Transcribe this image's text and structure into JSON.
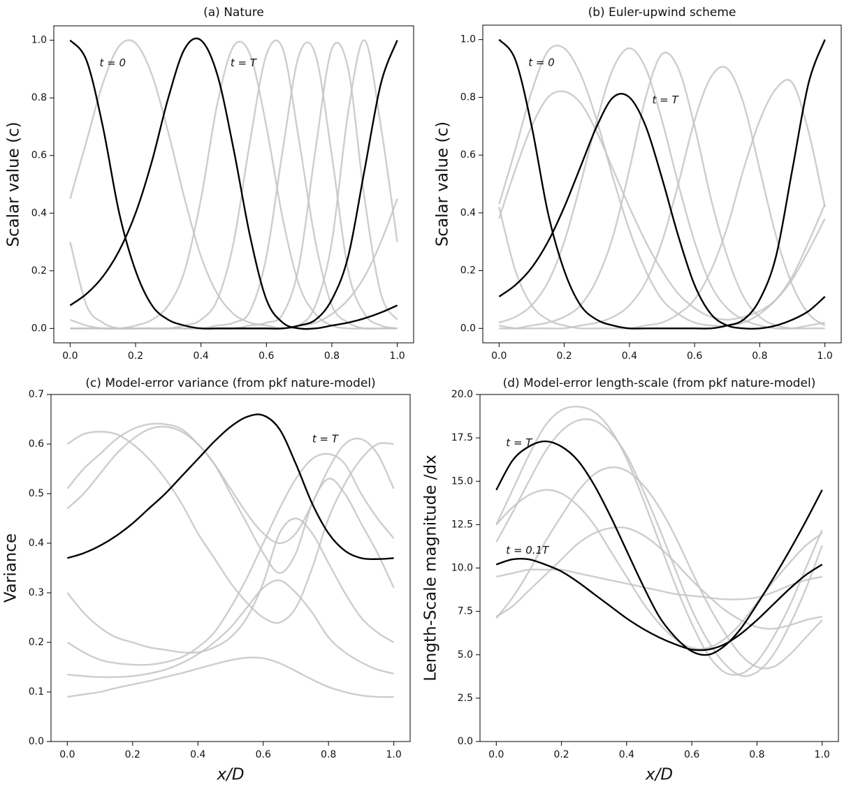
{
  "chart_data": [
    {
      "type": "line",
      "title": "(a) Nature",
      "ylabel": "Scalar value (c)",
      "x": [
        0,
        0.05,
        0.1,
        0.15,
        0.2,
        0.25,
        0.3,
        0.35,
        0.4,
        0.45,
        0.5,
        0.55,
        0.6,
        0.65,
        0.7,
        0.75,
        0.8,
        0.85,
        0.9,
        0.95,
        1
      ],
      "xlim": [
        -0.05,
        1.05
      ],
      "xticks": [
        {
          "value": 0,
          "label": "0.0"
        },
        0.2,
        0.4,
        0.6,
        0.8,
        {
          "value": 1,
          "label": "1.0"
        }
      ],
      "ylim": [
        -0.05,
        1.05
      ],
      "yticks": [
        {
          "value": 0,
          "label": "0.0"
        },
        0.2,
        0.4,
        0.6,
        0.8,
        {
          "value": 1,
          "label": "1.0"
        }
      ],
      "annotations": [
        "t = 0",
        "t = T"
      ],
      "series": [
        {
          "color": "#c4c4c4",
          "values": [
            0.45,
            0.65,
            0.85,
            0.98,
            0.99,
            0.88,
            0.68,
            0.45,
            0.25,
            0.12,
            0.05,
            0.02,
            0.01,
            0,
            0.01,
            0.02,
            0.05,
            0.1,
            0.18,
            0.3,
            0.45
          ]
        },
        {
          "color": "#c4c4c4",
          "values": [
            0,
            0,
            0,
            0,
            0.01,
            0.03,
            0.08,
            0.2,
            0.45,
            0.78,
            0.98,
            0.95,
            0.7,
            0.38,
            0.15,
            0.05,
            0.01,
            0,
            0,
            0,
            0
          ]
        },
        {
          "color": "#c4c4c4",
          "values": [
            0,
            0,
            0,
            0,
            0,
            0,
            0,
            0.01,
            0.03,
            0.1,
            0.3,
            0.65,
            0.95,
            0.97,
            0.65,
            0.3,
            0.08,
            0.02,
            0,
            0,
            0
          ]
        },
        {
          "color": "#c4c4c4",
          "values": [
            0,
            0,
            0,
            0,
            0,
            0,
            0,
            0,
            0,
            0.01,
            0.02,
            0.06,
            0.25,
            0.62,
            0.95,
            0.95,
            0.6,
            0.2,
            0.05,
            0.01,
            0
          ]
        },
        {
          "color": "#c4c4c4",
          "values": [
            0.03,
            0.01,
            0,
            0,
            0,
            0,
            0,
            0,
            0,
            0,
            0,
            0.01,
            0.02,
            0.05,
            0.22,
            0.62,
            0.97,
            0.9,
            0.45,
            0.12,
            0.03
          ]
        },
        {
          "color": "#c4c4c4",
          "values": [
            0.3,
            0.08,
            0.02,
            0,
            0,
            0,
            0,
            0,
            0,
            0,
            0,
            0,
            0,
            0,
            0.01,
            0.08,
            0.3,
            0.75,
            1.0,
            0.7,
            0.3
          ]
        },
        {
          "color": "#000000",
          "values": [
            1.0,
            0.93,
            0.7,
            0.4,
            0.2,
            0.08,
            0.03,
            0.01,
            0,
            0,
            0,
            0,
            0,
            0,
            0.01,
            0.03,
            0.1,
            0.25,
            0.55,
            0.85,
            1.0
          ]
        },
        {
          "color": "#000000",
          "values": [
            0.08,
            0.12,
            0.18,
            0.27,
            0.4,
            0.58,
            0.8,
            0.97,
            1.0,
            0.88,
            0.62,
            0.32,
            0.1,
            0.02,
            0,
            0,
            0.01,
            0.02,
            0.035,
            0.055,
            0.08
          ]
        }
      ]
    },
    {
      "type": "line",
      "title": "(b) Euler-upwind scheme",
      "ylabel": "Scalar value (c)",
      "x": [
        0,
        0.05,
        0.1,
        0.15,
        0.2,
        0.25,
        0.3,
        0.35,
        0.4,
        0.45,
        0.5,
        0.55,
        0.6,
        0.65,
        0.7,
        0.75,
        0.8,
        0.85,
        0.9,
        0.95,
        1
      ],
      "xlim": [
        -0.05,
        1.05
      ],
      "xticks": [
        {
          "value": 0,
          "label": "0.0"
        },
        0.2,
        0.4,
        0.6,
        0.8,
        {
          "value": 1,
          "label": "1.0"
        }
      ],
      "ylim": [
        -0.05,
        1.05
      ],
      "yticks": [
        {
          "value": 0,
          "label": "0.0"
        },
        0.2,
        0.4,
        0.6,
        0.8,
        {
          "value": 1,
          "label": "1.0"
        }
      ],
      "annotations": [
        "t = 0",
        "t = T"
      ],
      "series": [
        {
          "color": "#c4c4c4",
          "values": [
            0.43,
            0.62,
            0.82,
            0.96,
            0.97,
            0.88,
            0.72,
            0.52,
            0.34,
            0.2,
            0.1,
            0.05,
            0.02,
            0.01,
            0.01,
            0.02,
            0.05,
            0.1,
            0.18,
            0.3,
            0.43
          ]
        },
        {
          "color": "#c4c4c4",
          "values": [
            0.38,
            0.55,
            0.7,
            0.8,
            0.82,
            0.78,
            0.68,
            0.55,
            0.42,
            0.3,
            0.2,
            0.12,
            0.07,
            0.04,
            0.03,
            0.04,
            0.06,
            0.1,
            0.17,
            0.27,
            0.38
          ]
        },
        {
          "color": "#c4c4c4",
          "values": [
            0.02,
            0.04,
            0.08,
            0.16,
            0.3,
            0.5,
            0.72,
            0.9,
            0.97,
            0.9,
            0.72,
            0.5,
            0.3,
            0.15,
            0.07,
            0.03,
            0.01,
            0,
            0,
            0.01,
            0.02
          ]
        },
        {
          "color": "#c4c4c4",
          "values": [
            0,
            0,
            0.01,
            0.02,
            0.04,
            0.08,
            0.17,
            0.32,
            0.55,
            0.8,
            0.95,
            0.9,
            0.7,
            0.45,
            0.25,
            0.11,
            0.04,
            0.01,
            0,
            0,
            0
          ]
        },
        {
          "color": "#c4c4c4",
          "values": [
            0.01,
            0,
            0,
            0,
            0,
            0.01,
            0.02,
            0.04,
            0.08,
            0.16,
            0.3,
            0.5,
            0.72,
            0.87,
            0.9,
            0.78,
            0.55,
            0.32,
            0.15,
            0.05,
            0.01
          ]
        },
        {
          "color": "#c4c4c4",
          "values": [
            0.42,
            0.2,
            0.08,
            0.03,
            0.01,
            0,
            0,
            0,
            0,
            0.01,
            0.02,
            0.05,
            0.1,
            0.2,
            0.35,
            0.55,
            0.72,
            0.83,
            0.85,
            0.68,
            0.42
          ]
        },
        {
          "color": "#000000",
          "values": [
            1.0,
            0.93,
            0.7,
            0.4,
            0.2,
            0.08,
            0.03,
            0.01,
            0,
            0,
            0,
            0,
            0,
            0,
            0.01,
            0.03,
            0.1,
            0.25,
            0.55,
            0.85,
            1.0
          ]
        },
        {
          "color": "#000000",
          "values": [
            0.11,
            0.15,
            0.21,
            0.3,
            0.42,
            0.56,
            0.7,
            0.8,
            0.8,
            0.7,
            0.52,
            0.32,
            0.15,
            0.05,
            0.01,
            0,
            0,
            0.01,
            0.03,
            0.06,
            0.11
          ]
        }
      ]
    },
    {
      "type": "line",
      "title": "(c) Model-error variance (from pkf nature-model)",
      "ylabel": "Variance",
      "xlabel": "x/D",
      "x": [
        0,
        0.05,
        0.1,
        0.15,
        0.2,
        0.25,
        0.3,
        0.35,
        0.4,
        0.45,
        0.5,
        0.55,
        0.6,
        0.65,
        0.7,
        0.75,
        0.8,
        0.85,
        0.9,
        0.95,
        1
      ],
      "xlim": [
        -0.05,
        1.05
      ],
      "xticks": [
        {
          "value": 0,
          "label": "0.0"
        },
        0.2,
        0.4,
        0.6,
        0.8,
        {
          "value": 1,
          "label": "1.0"
        }
      ],
      "ylim": [
        0,
        0.7
      ],
      "yticks": [
        {
          "value": 0,
          "label": "0.0"
        },
        0.1,
        0.2,
        0.3,
        0.4,
        0.5,
        0.6,
        0.7
      ],
      "annotations": [
        "t = T"
      ],
      "series": [
        {
          "color": "#c4c4c4",
          "values": [
            0.09,
            0.095,
            0.1,
            0.108,
            0.115,
            0.122,
            0.13,
            0.138,
            0.147,
            0.156,
            0.164,
            0.169,
            0.168,
            0.158,
            0.142,
            0.125,
            0.11,
            0.1,
            0.093,
            0.09,
            0.09
          ]
        },
        {
          "color": "#c4c4c4",
          "values": [
            0.135,
            0.132,
            0.13,
            0.13,
            0.132,
            0.137,
            0.145,
            0.158,
            0.176,
            0.2,
            0.23,
            0.27,
            0.31,
            0.325,
            0.3,
            0.26,
            0.21,
            0.18,
            0.16,
            0.145,
            0.137
          ]
        },
        {
          "color": "#c4c4c4",
          "values": [
            0.6,
            0.62,
            0.625,
            0.62,
            0.6,
            0.57,
            0.53,
            0.48,
            0.42,
            0.37,
            0.32,
            0.28,
            0.25,
            0.24,
            0.27,
            0.35,
            0.45,
            0.52,
            0.57,
            0.6,
            0.6
          ]
        },
        {
          "color": "#c4c4c4",
          "values": [
            0.3,
            0.26,
            0.23,
            0.21,
            0.2,
            0.19,
            0.185,
            0.18,
            0.18,
            0.19,
            0.21,
            0.25,
            0.32,
            0.42,
            0.45,
            0.42,
            0.36,
            0.3,
            0.25,
            0.22,
            0.2
          ]
        },
        {
          "color": "#c4c4c4",
          "values": [
            0.47,
            0.5,
            0.54,
            0.58,
            0.61,
            0.63,
            0.635,
            0.625,
            0.6,
            0.56,
            0.5,
            0.44,
            0.38,
            0.34,
            0.38,
            0.48,
            0.53,
            0.5,
            0.44,
            0.38,
            0.31
          ]
        },
        {
          "color": "#c4c4c4",
          "values": [
            0.2,
            0.18,
            0.165,
            0.158,
            0.155,
            0.155,
            0.16,
            0.17,
            0.19,
            0.22,
            0.27,
            0.33,
            0.4,
            0.47,
            0.53,
            0.57,
            0.58,
            0.56,
            0.5,
            0.45,
            0.41
          ]
        },
        {
          "color": "#c4c4c4",
          "values": [
            0.51,
            0.55,
            0.58,
            0.61,
            0.63,
            0.64,
            0.64,
            0.63,
            0.6,
            0.56,
            0.51,
            0.46,
            0.42,
            0.4,
            0.42,
            0.48,
            0.55,
            0.6,
            0.61,
            0.58,
            0.51
          ]
        },
        {
          "color": "#000000",
          "values": [
            0.37,
            0.38,
            0.395,
            0.415,
            0.44,
            0.47,
            0.5,
            0.535,
            0.57,
            0.605,
            0.635,
            0.655,
            0.658,
            0.63,
            0.56,
            0.48,
            0.42,
            0.385,
            0.37,
            0.368,
            0.37
          ]
        }
      ]
    },
    {
      "type": "line",
      "title": "(d) Model-error length-scale (from pkf nature-model)",
      "ylabel": "Length-Scale magnitude /dx",
      "xlabel": "x/D",
      "x": [
        0,
        0.05,
        0.1,
        0.15,
        0.2,
        0.25,
        0.3,
        0.35,
        0.4,
        0.45,
        0.5,
        0.55,
        0.6,
        0.65,
        0.7,
        0.75,
        0.8,
        0.85,
        0.9,
        0.95,
        1
      ],
      "xlim": [
        -0.05,
        1.05
      ],
      "xticks": [
        {
          "value": 0,
          "label": "0.0"
        },
        0.2,
        0.4,
        0.6,
        0.8,
        {
          "value": 1,
          "label": "1.0"
        }
      ],
      "ylim": [
        0,
        20
      ],
      "yticks": [
        {
          "value": 0,
          "label": "0.0"
        },
        2.5,
        {
          "value": 5,
          "label": "5.0"
        },
        7.5,
        {
          "value": 10,
          "label": "10.0"
        },
        12.5,
        {
          "value": 15,
          "label": "15.0"
        },
        17.5,
        {
          "value": 20,
          "label": "20.0"
        }
      ],
      "annotations": [
        "t = T",
        "t = 0.1T"
      ],
      "series": [
        {
          "color": "#c4c4c4",
          "values": [
            12.5,
            14.5,
            16.5,
            18.2,
            19.1,
            19.3,
            19.0,
            18.0,
            16.3,
            14.0,
            11.5,
            9.0,
            6.8,
            5.0,
            4.0,
            3.9,
            4.6,
            6.0,
            7.8,
            10.0,
            12.2
          ]
        },
        {
          "color": "#c4c4c4",
          "values": [
            11.5,
            13.2,
            15.0,
            16.7,
            17.9,
            18.5,
            18.5,
            17.8,
            16.5,
            14.5,
            12.3,
            9.9,
            7.6,
            5.8,
            4.5,
            3.8,
            4.0,
            5.0,
            6.7,
            8.8,
            11.3
          ]
        },
        {
          "color": "#c4c4c4",
          "values": [
            7.1,
            8.3,
            9.8,
            11.5,
            13.0,
            14.4,
            15.4,
            15.8,
            15.6,
            14.8,
            13.5,
            11.8,
            9.8,
            7.9,
            6.3,
            5.0,
            4.3,
            4.3,
            5.0,
            6.0,
            7.0
          ]
        },
        {
          "color": "#c4c4c4",
          "values": [
            12.5,
            13.5,
            14.2,
            14.5,
            14.3,
            13.6,
            12.5,
            11.0,
            9.5,
            8.0,
            6.8,
            5.9,
            5.4,
            5.4,
            5.9,
            6.8,
            8.0,
            9.2,
            10.3,
            11.3,
            12.0
          ]
        },
        {
          "color": "#c4c4c4",
          "values": [
            7.2,
            7.8,
            8.7,
            9.6,
            10.5,
            11.4,
            12.0,
            12.3,
            12.3,
            11.9,
            11.2,
            10.3,
            9.3,
            8.4,
            7.6,
            7.0,
            6.6,
            6.5,
            6.7,
            7.0,
            7.2
          ]
        },
        {
          "color": "#c4c4c4",
          "values": [
            9.5,
            9.7,
            9.9,
            9.9,
            9.9,
            9.7,
            9.5,
            9.3,
            9.1,
            8.9,
            8.7,
            8.5,
            8.4,
            8.3,
            8.2,
            8.2,
            8.3,
            8.6,
            9.0,
            9.3,
            9.5
          ]
        },
        {
          "color": "#000000",
          "values": [
            14.5,
            16.2,
            17.0,
            17.3,
            17.0,
            16.2,
            14.8,
            13.0,
            11.0,
            9.0,
            7.2,
            6.0,
            5.2,
            5.0,
            5.5,
            6.5,
            7.9,
            9.4,
            11.0,
            12.7,
            14.5
          ]
        },
        {
          "color": "#000000",
          "values": [
            10.2,
            10.5,
            10.5,
            10.2,
            9.8,
            9.2,
            8.5,
            7.8,
            7.1,
            6.5,
            6.0,
            5.6,
            5.3,
            5.3,
            5.6,
            6.2,
            7.0,
            7.9,
            8.8,
            9.6,
            10.2
          ]
        }
      ]
    }
  ]
}
